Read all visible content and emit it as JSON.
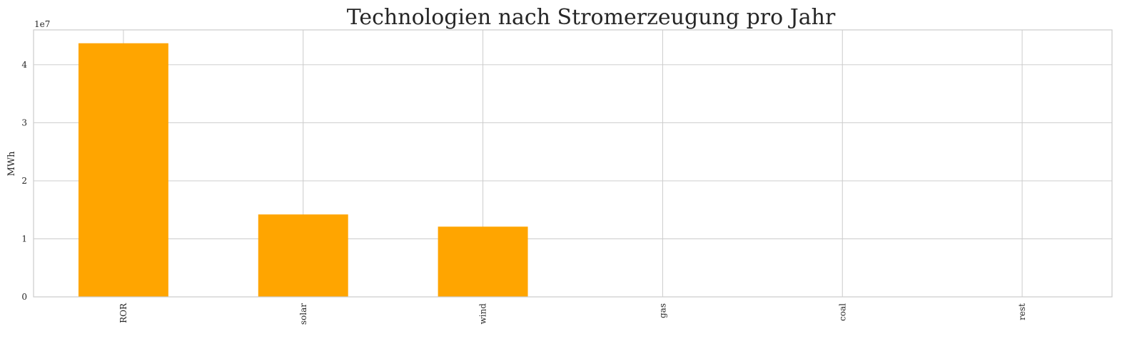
{
  "chart_data": {
    "type": "bar",
    "title": "Technologien nach Stromerzeugung pro Jahr",
    "xlabel": "",
    "ylabel": "MWh",
    "y_offset_label": "1e7",
    "categories": [
      "ROR",
      "solar",
      "wind",
      "gas",
      "coal",
      "rest"
    ],
    "values": [
      43700000,
      14200000,
      12100000,
      0,
      0,
      0
    ],
    "ylim": [
      0,
      46000000
    ],
    "yticks": [
      0,
      10000000,
      20000000,
      30000000,
      40000000
    ],
    "ytick_labels": [
      "0",
      "1",
      "2",
      "3",
      "4"
    ],
    "bar_color": "#FFA500",
    "grid": true,
    "legend": "none"
  }
}
